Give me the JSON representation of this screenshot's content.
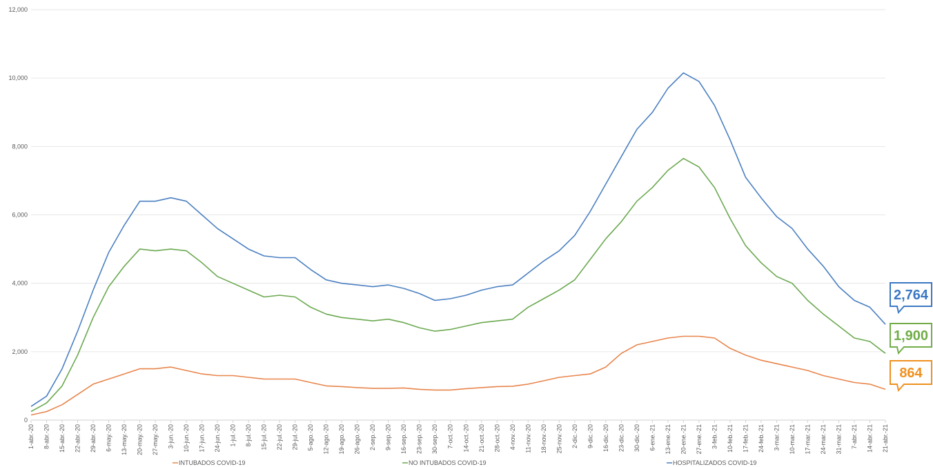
{
  "chart_data": {
    "type": "line",
    "categories": [
      "1-abr.-20",
      "8-abr.-20",
      "15-abr.-20",
      "22-abr.-20",
      "29-abr.-20",
      "6-may.-20",
      "13-may.-20",
      "20-may.-20",
      "27-may.-20",
      "3-jun.-20",
      "10-jun.-20",
      "17-jun.-20",
      "24-jun.-20",
      "1-jul.-20",
      "8-jul.-20",
      "15-jul.-20",
      "22-jul.-20",
      "29-jul.-20",
      "5-ago.-20",
      "12-ago.-20",
      "19-ago.-20",
      "26-ago.-20",
      "2-sep.-20",
      "9-sep.-20",
      "16-sep.-20",
      "23-sep.-20",
      "30-sep.-20",
      "7-oct.-20",
      "14-oct.-20",
      "21-oct.-20",
      "28-oct.-20",
      "4-nov.-20",
      "11-nov.-20",
      "18-nov.-20",
      "25-nov.-20",
      "2-dic.-20",
      "9-dic.-20",
      "16-dic.-20",
      "23-dic.-20",
      "30-dic.-20",
      "6-ene.-21",
      "13-ene.-21",
      "20-ene.-21",
      "27-ene.-21",
      "3-feb.-21",
      "10-feb.-21",
      "17-feb.-21",
      "24-feb.-21",
      "3-mar.-21",
      "10-mar.-21",
      "17-mar.-21",
      "24-mar.-21",
      "31-mar.-21",
      "7-abr.-21",
      "14-abr.-21",
      "21-abr.-21"
    ],
    "series": [
      {
        "name": "INTUBADOS COVID-19",
        "color": "#e8844a",
        "values": [
          150,
          250,
          450,
          750,
          1050,
          1200,
          1350,
          1500,
          1500,
          1550,
          1450,
          1350,
          1300,
          1300,
          1250,
          1200,
          1200,
          1200,
          1100,
          1000,
          980,
          950,
          930,
          930,
          940,
          900,
          880,
          880,
          920,
          950,
          980,
          990,
          1050,
          1150,
          1250,
          1300,
          1350,
          1550,
          1950,
          2200,
          2300,
          2400,
          2450,
          2450,
          2400,
          2100,
          1900,
          1750,
          1650,
          1550,
          1450,
          1300,
          1200,
          1100,
          1050,
          900
        ]
      },
      {
        "name": "NO INTUBADOS COVID-19",
        "color": "#6aa84f",
        "values": [
          250,
          500,
          1000,
          1900,
          3000,
          3900,
          4500,
          5000,
          4950,
          5000,
          4950,
          4600,
          4200,
          4000,
          3800,
          3600,
          3650,
          3600,
          3300,
          3100,
          3000,
          2950,
          2900,
          2950,
          2850,
          2700,
          2600,
          2650,
          2750,
          2850,
          2900,
          2950,
          3300,
          3550,
          3800,
          4100,
          4700,
          5300,
          5800,
          6400,
          6800,
          7300,
          7650,
          7400,
          6800,
          5900,
          5100,
          4600,
          4200,
          4000,
          3500,
          3100,
          2750,
          2400,
          2300,
          1950
        ]
      },
      {
        "name": "HOSPITALIZADOS COVID-19",
        "color": "#4a7fc1",
        "values": [
          400,
          700,
          1500,
          2600,
          3800,
          4900,
          5700,
          6400,
          6400,
          6500,
          6400,
          6000,
          5600,
          5300,
          5000,
          4800,
          4750,
          4750,
          4400,
          4100,
          4000,
          3950,
          3900,
          3950,
          3850,
          3700,
          3500,
          3550,
          3650,
          3800,
          3900,
          3950,
          4300,
          4650,
          4950,
          5400,
          6100,
          6900,
          7700,
          8500,
          9000,
          9700,
          10150,
          9900,
          9200,
          8200,
          7100,
          6500,
          5950,
          5600,
          5000,
          4500,
          3900,
          3500,
          3300,
          2800
        ]
      }
    ],
    "annotations": [
      {
        "text": "2,764",
        "value": 2764,
        "color": "#3a78c3"
      },
      {
        "text": "1,900",
        "value": 1900,
        "color": "#70ad47"
      },
      {
        "text": "864",
        "value": 864,
        "color": "#f0901e"
      }
    ],
    "ylim": [
      0,
      12000
    ],
    "yticks": [
      0,
      {
        "value": 2000,
        "label": "2,000"
      },
      {
        "value": 4000,
        "label": "4,000"
      },
      {
        "value": 6000,
        "label": "6,000"
      },
      {
        "value": 8000,
        "label": "8,000"
      },
      {
        "value": 10000,
        "label": "10,000"
      },
      {
        "value": 12000,
        "label": "12,000"
      }
    ],
    "grid": true,
    "legend": "bottom"
  }
}
